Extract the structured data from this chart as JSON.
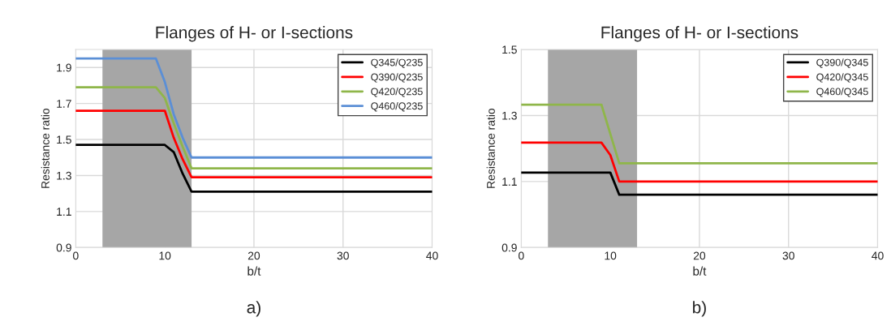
{
  "chart_data": [
    {
      "type": "line",
      "title": "Flanges of H- or I-sections",
      "xlabel": "b/t",
      "ylabel": "Resistance ratio",
      "xlim": [
        0,
        40
      ],
      "xticks": [
        0,
        10,
        20,
        30,
        40
      ],
      "ylim": [
        0.9,
        2.0
      ],
      "yticks": [
        0.9,
        1.1,
        1.3,
        1.5,
        1.7,
        1.9
      ],
      "grid": true,
      "legend": "top right",
      "marker": "none",
      "line_style": "solid",
      "bands": [
        {
          "axis": "x",
          "from": 3,
          "to": 13,
          "color": "#a6a6a6"
        }
      ],
      "annotations": [
        "a)"
      ],
      "series": [
        {
          "name": "Q345/Q235",
          "color": "#000000",
          "x": [
            0,
            10,
            11,
            12,
            13,
            40
          ],
          "values": [
            1.47,
            1.47,
            1.43,
            1.31,
            1.21,
            1.21
          ]
        },
        {
          "name": "Q390/Q235",
          "color": "#ff0000",
          "x": [
            0,
            10,
            11,
            12,
            13,
            40
          ],
          "values": [
            1.66,
            1.66,
            1.51,
            1.39,
            1.29,
            1.29
          ]
        },
        {
          "name": "Q420/Q235",
          "color": "#8fb64a",
          "x": [
            0,
            9,
            10,
            11,
            12,
            13,
            40
          ],
          "values": [
            1.79,
            1.79,
            1.73,
            1.59,
            1.46,
            1.34,
            1.34
          ]
        },
        {
          "name": "Q460/Q235",
          "color": "#5b8fd6",
          "x": [
            0,
            9,
            10,
            11,
            12,
            13,
            40
          ],
          "values": [
            1.95,
            1.95,
            1.82,
            1.64,
            1.51,
            1.4,
            1.4
          ]
        }
      ]
    },
    {
      "type": "line",
      "title": "Flanges of H- or I-sections",
      "xlabel": "b/t",
      "ylabel": "Resistance ratio",
      "xlim": [
        0,
        40
      ],
      "xticks": [
        0,
        10,
        20,
        30,
        40
      ],
      "ylim": [
        0.9,
        1.5
      ],
      "yticks": [
        0.9,
        1.1,
        1.3,
        1.5
      ],
      "grid": true,
      "legend": "top right",
      "marker": "none",
      "line_style": "solid",
      "bands": [
        {
          "axis": "x",
          "from": 3,
          "to": 13,
          "color": "#a6a6a6"
        }
      ],
      "annotations": [
        "b)"
      ],
      "series": [
        {
          "name": "Q390/Q345",
          "color": "#000000",
          "x": [
            0,
            10,
            11,
            40
          ],
          "values": [
            1.127,
            1.127,
            1.06,
            1.06
          ]
        },
        {
          "name": "Q420/Q345",
          "color": "#ff0000",
          "x": [
            0,
            9,
            10,
            11,
            40
          ],
          "values": [
            1.218,
            1.218,
            1.18,
            1.1,
            1.1
          ]
        },
        {
          "name": "Q460/Q345",
          "color": "#8fb64a",
          "x": [
            0,
            9,
            11,
            40
          ],
          "values": [
            1.333,
            1.333,
            1.155,
            1.155
          ]
        }
      ]
    }
  ]
}
